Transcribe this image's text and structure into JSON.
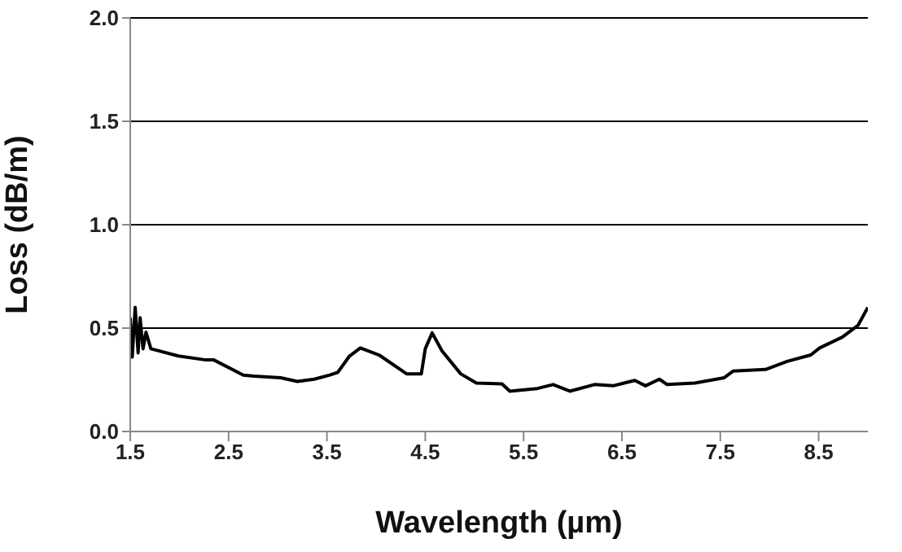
{
  "chart_data": {
    "type": "line",
    "xlabel": "Wavelength (µm)",
    "ylabel": "Loss (dB/m)",
    "xlim": [
      1.5,
      9
    ],
    "xticks": [
      1.5,
      2.5,
      3.5,
      4.5,
      5.5,
      6.5,
      7.5,
      8.5
    ],
    "ylim": [
      0,
      2
    ],
    "yticks": [
      {
        "value": 0,
        "label": "0.0"
      },
      {
        "value": 0.5,
        "label": "0.5"
      },
      {
        "value": 1,
        "label": "1.0"
      },
      {
        "value": 1.5,
        "label": "1.5"
      },
      {
        "value": 2,
        "label": "2.0"
      }
    ],
    "grid": "y",
    "marker": "none",
    "line_style": "solid",
    "series": [
      {
        "color": "#000000",
        "x": [
          1.5,
          1.52,
          1.55,
          1.58,
          1.6,
          1.63,
          1.66,
          1.71,
          1.99,
          2.27,
          2.35,
          2.65,
          2.76,
          3.03,
          3.2,
          3.37,
          3.53,
          3.61,
          3.73,
          3.84,
          4.03,
          4.31,
          4.46,
          4.5,
          4.57,
          4.67,
          4.86,
          5.02,
          5.28,
          5.36,
          5.64,
          5.8,
          5.97,
          6.22,
          6.41,
          6.63,
          6.74,
          6.88,
          6.96,
          7.24,
          7.54,
          7.63,
          7.96,
          8.18,
          8.42,
          8.51,
          8.74,
          8.9,
          9.0
        ],
        "values": [
          0.55,
          0.36,
          0.6,
          0.38,
          0.55,
          0.4,
          0.48,
          0.4,
          0.365,
          0.346,
          0.346,
          0.273,
          0.268,
          0.26,
          0.242,
          0.253,
          0.273,
          0.286,
          0.365,
          0.404,
          0.37,
          0.279,
          0.279,
          0.4,
          0.477,
          0.39,
          0.279,
          0.234,
          0.23,
          0.195,
          0.208,
          0.227,
          0.195,
          0.227,
          0.221,
          0.247,
          0.221,
          0.253,
          0.227,
          0.234,
          0.26,
          0.292,
          0.3,
          0.339,
          0.37,
          0.404,
          0.456,
          0.513,
          0.6
        ]
      }
    ]
  }
}
